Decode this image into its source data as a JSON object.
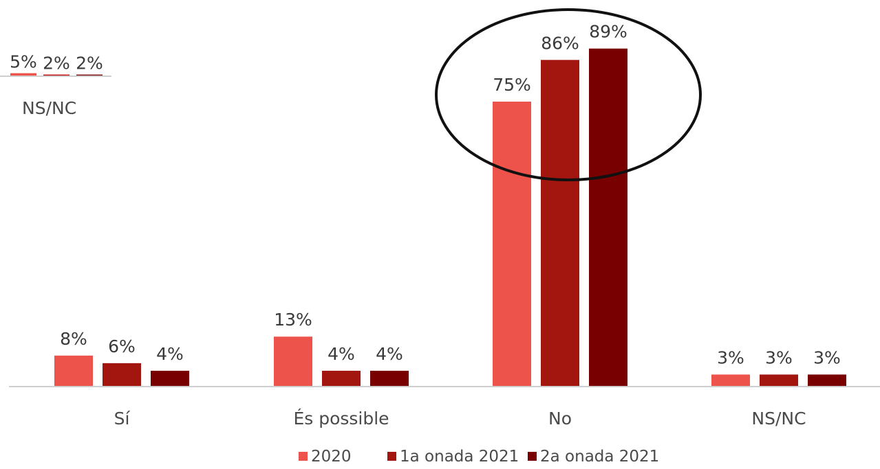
{
  "chart_data": [
    {
      "type": "bar",
      "categories": [
        "Sí",
        "És possible",
        "No",
        "NS/NC"
      ],
      "series": [
        {
          "name": "2020",
          "values": [
            8,
            13,
            75,
            3
          ],
          "labels": [
            "8%",
            "13%",
            "75%",
            "3%"
          ],
          "color": "#ee534b"
        },
        {
          "name": "1a onada 2021",
          "values": [
            6,
            4,
            86,
            3
          ],
          "labels": [
            "6%",
            "4%",
            "86%",
            "3%"
          ],
          "color": "#a3160f"
        },
        {
          "name": "2a onada 2021",
          "values": [
            4,
            4,
            89,
            3
          ],
          "labels": [
            "4%",
            "4%",
            "89%",
            "3%"
          ],
          "color": "#780000"
        }
      ],
      "ylim": [
        0,
        100
      ],
      "grid": false,
      "legend": "bottom",
      "annotation": "ellipse around No"
    },
    {
      "type": "bar",
      "categories": [
        "NS/NC"
      ],
      "series": [
        {
          "name": "2020",
          "values": [
            5
          ],
          "labels": [
            "5%"
          ],
          "color": "#ee534b"
        },
        {
          "name": "1a onada 2021",
          "values": [
            2
          ],
          "labels": [
            "2%"
          ],
          "color": "#c00000"
        },
        {
          "name": "2a onada 2021",
          "values": [
            2
          ],
          "labels": [
            "2%"
          ],
          "color": "#780000"
        }
      ],
      "ylim": [
        0,
        100
      ],
      "grid": false
    }
  ]
}
